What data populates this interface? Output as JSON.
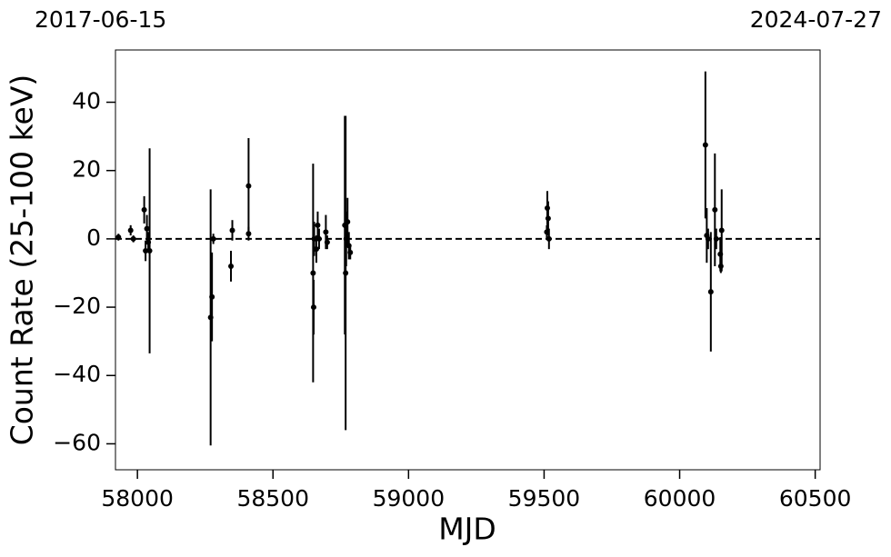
{
  "chart_data": {
    "type": "scatter",
    "annotations": [
      "2017-06-15",
      "2024-07-27"
    ],
    "xlabel": "MJD",
    "ylabel": "Count Rate (25-100 keV)",
    "xlim": [
      57919,
      60518
    ],
    "ylim": [
      -67.6,
      55.3
    ],
    "xticks": [
      58000,
      58500,
      59000,
      59500,
      60000,
      60500
    ],
    "yticks": [
      {
        "value": -60,
        "label": "−60"
      },
      {
        "value": -40,
        "label": "−40"
      },
      {
        "value": -20,
        "label": "−20"
      },
      0,
      20,
      40
    ],
    "hline": 0,
    "series": [
      {
        "color": "#000000",
        "x": [
          57930,
          57975,
          57985,
          58025,
          58030,
          58035,
          58040,
          58045,
          58270,
          58275,
          58280,
          58345,
          58350,
          58410,
          58410,
          58648,
          58650,
          58652,
          58660,
          58665,
          58670,
          58695,
          58700,
          58765,
          58768,
          58770,
          58775,
          58780,
          58785,
          59510,
          59512,
          59515,
          59518,
          60095,
          60100,
          60105,
          60115,
          60130,
          60135,
          60150,
          60152,
          60155
        ],
        "values": [
          0.5,
          2.5,
          0,
          8.5,
          -3.5,
          3,
          -1,
          -3.5,
          -23,
          -17,
          0,
          -8,
          2.5,
          15.5,
          1.5,
          -10,
          -20,
          0,
          -3,
          4,
          0,
          2,
          -1,
          4,
          -10,
          0,
          5,
          -2,
          -4,
          2,
          9,
          6,
          0,
          27.5,
          1,
          0,
          -15.5,
          8.5,
          0,
          -4.5,
          -8,
          2.5
        ],
        "errors": [
          1,
          1.5,
          1,
          4,
          3,
          4,
          3,
          30,
          37.5,
          13,
          1.5,
          4.5,
          3,
          14,
          2,
          32,
          8,
          5,
          4,
          4,
          3,
          5,
          2,
          32,
          46,
          8,
          7,
          4,
          2,
          2,
          5,
          5,
          3,
          21.5,
          8,
          3,
          17.5,
          16.5,
          3,
          5,
          2,
          12
        ]
      }
    ]
  }
}
